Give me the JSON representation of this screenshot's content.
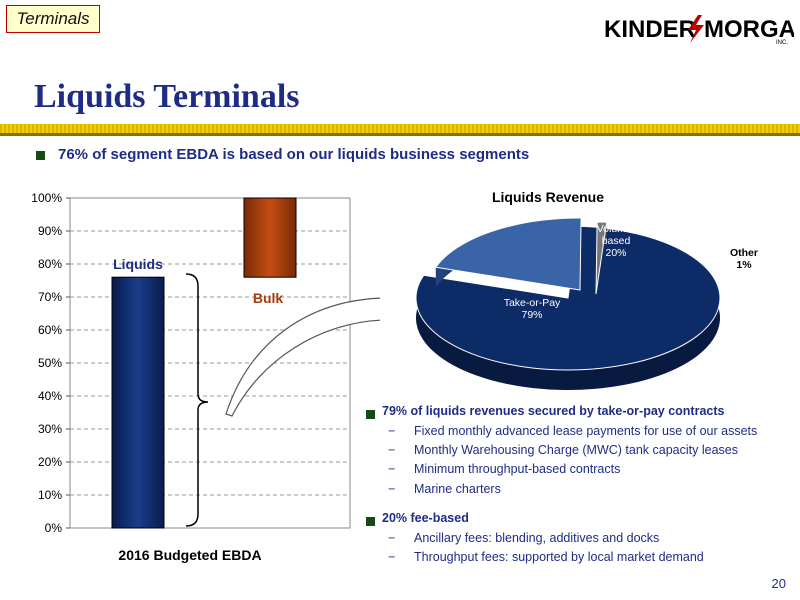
{
  "header": {
    "tag": "Terminals",
    "logo_text": "KINDER",
    "logo_text2": "MORGAN",
    "logo_inc": "INC.",
    "title": "Liquids Terminals"
  },
  "subhead": "76% of segment EBDA is based on our liquids business segments",
  "colors": {
    "navy": "#1f2c86",
    "bar_liquids": "#0e2a66",
    "bar_bulk": "#a63b0d",
    "accent_gold": "#f0d000"
  },
  "chart_data": [
    {
      "type": "bar",
      "xlabel": "2016 Budgeted EBDA",
      "yticks": [
        "0%",
        "10%",
        "20%",
        "30%",
        "40%",
        "50%",
        "60%",
        "70%",
        "80%",
        "90%",
        "100%"
      ],
      "ylim": [
        0,
        100
      ],
      "series": [
        {
          "name": "Liquids",
          "start": 0,
          "end": 76
        },
        {
          "name": "Bulk",
          "start": 76,
          "end": 100
        }
      ],
      "grid": true
    },
    {
      "type": "pie",
      "title": "Liquids Revenue",
      "slices": [
        {
          "label": "Take-or-Pay",
          "value_label": "79%",
          "value": 79
        },
        {
          "label": "Volume-based",
          "value_label": "20%",
          "value": 20
        },
        {
          "label": "Other",
          "value_label": "1%",
          "value": 1
        }
      ]
    }
  ],
  "bullets": [
    {
      "head": "79% of liquids revenues secured by take-or-pay contracts",
      "items": [
        "Fixed monthly advanced lease payments for use of our assets",
        "Monthly Warehousing Charge (MWC) tank capacity leases",
        "Minimum throughput-based contracts",
        "Marine charters"
      ]
    },
    {
      "head": "20% fee-based",
      "items": [
        "Ancillary fees:  blending, additives and docks",
        "Throughput fees:  supported by local market demand"
      ]
    }
  ],
  "dash": "−",
  "page_number": "20"
}
